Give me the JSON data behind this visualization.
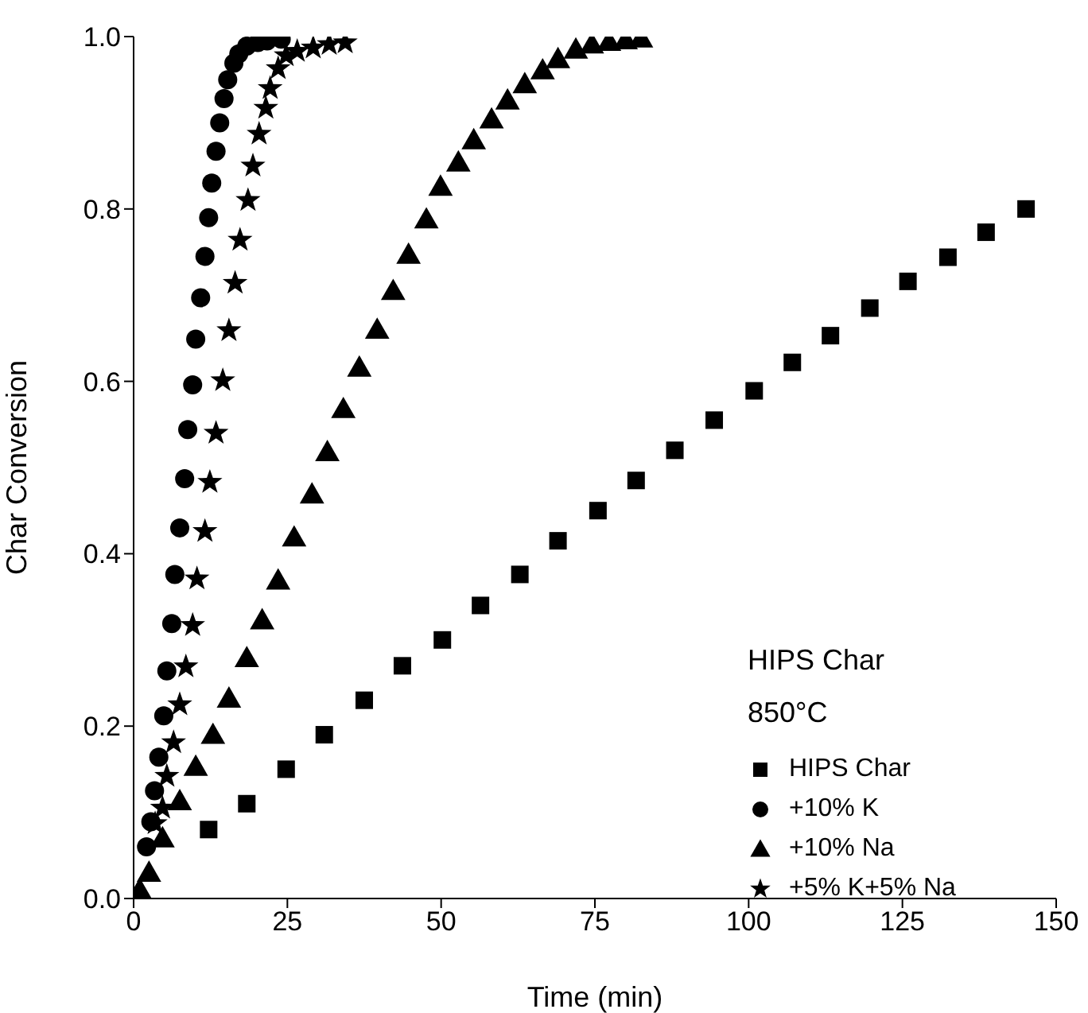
{
  "chart_data": {
    "type": "scatter",
    "xlabel": "Time (min)",
    "ylabel": "Char Conversion",
    "xlim": [
      0,
      150
    ],
    "xticks": [
      0,
      25,
      50,
      75,
      100,
      125,
      150
    ],
    "ylim": [
      0,
      1
    ],
    "yticks": [
      {
        "value": 0,
        "label": "0.0"
      },
      0.2,
      0.4,
      0.6,
      0.8,
      {
        "value": 1,
        "label": "1.0"
      }
    ],
    "legend": "bottom right",
    "annotations": [
      "HIPS Char",
      "850°C"
    ],
    "series": [
      {
        "name": "HIPS Char",
        "color": "#000000",
        "marker": "square",
        "x": [
          12.2,
          18.4,
          24.8,
          31.0,
          37.5,
          43.7,
          50.2,
          56.4,
          62.8,
          69.0,
          75.5,
          81.7,
          88.0,
          94.4,
          100.9,
          107.1,
          113.3,
          119.7,
          125.9,
          132.4,
          138.6,
          145.1
        ],
        "values": [
          0.08,
          0.11,
          0.15,
          0.19,
          0.23,
          0.27,
          0.3,
          0.34,
          0.376,
          0.415,
          0.45,
          0.485,
          0.52,
          0.555,
          0.589,
          0.622,
          0.653,
          0.685,
          0.716,
          0.744,
          0.773,
          0.8
        ]
      },
      {
        "name": "+10% K",
        "color": "#000000",
        "marker": "circle",
        "x": [
          2.1,
          2.8,
          3.4,
          4.1,
          4.9,
          5.4,
          6.2,
          6.7,
          7.5,
          8.3,
          8.8,
          9.6,
          10.1,
          10.9,
          11.6,
          12.2,
          12.7,
          13.4,
          14.0,
          14.7,
          15.3,
          16.3,
          17.1,
          18.4,
          20.2,
          21.7,
          24.0
        ],
        "values": [
          0.06,
          0.089,
          0.125,
          0.164,
          0.212,
          0.264,
          0.319,
          0.376,
          0.43,
          0.487,
          0.544,
          0.596,
          0.649,
          0.697,
          0.745,
          0.79,
          0.83,
          0.867,
          0.9,
          0.928,
          0.95,
          0.969,
          0.98,
          0.989,
          0.993,
          0.995,
          0.997
        ]
      },
      {
        "name": "+10% Na",
        "color": "#000000",
        "marker": "triangle",
        "x": [
          1.0,
          2.5,
          4.7,
          7.5,
          10.1,
          12.9,
          15.5,
          18.4,
          20.9,
          23.5,
          26.1,
          29.0,
          31.5,
          34.1,
          36.7,
          39.6,
          42.2,
          44.7,
          47.6,
          49.9,
          52.8,
          55.3,
          58.2,
          60.8,
          63.6,
          66.5,
          69.0,
          71.9,
          74.5,
          77.3,
          80.0,
          82.5
        ],
        "values": [
          0.01,
          0.03,
          0.07,
          0.113,
          0.153,
          0.19,
          0.232,
          0.279,
          0.323,
          0.369,
          0.419,
          0.469,
          0.518,
          0.568,
          0.616,
          0.66,
          0.705,
          0.747,
          0.788,
          0.826,
          0.854,
          0.88,
          0.904,
          0.926,
          0.945,
          0.961,
          0.974,
          0.985,
          0.991,
          0.994,
          0.996,
          0.998
        ]
      },
      {
        "name": "+5% K+5% Na",
        "color": "#000000",
        "marker": "star",
        "x": [
          3.5,
          4.7,
          5.4,
          6.5,
          7.5,
          8.5,
          9.6,
          10.3,
          11.6,
          12.4,
          13.4,
          14.5,
          15.5,
          16.5,
          17.3,
          18.6,
          19.4,
          20.4,
          21.5,
          22.2,
          23.5,
          24.8,
          26.6,
          29.2,
          31.8,
          34.4
        ],
        "values": [
          0.087,
          0.105,
          0.142,
          0.181,
          0.225,
          0.269,
          0.317,
          0.371,
          0.426,
          0.483,
          0.54,
          0.601,
          0.659,
          0.714,
          0.764,
          0.81,
          0.85,
          0.887,
          0.917,
          0.94,
          0.963,
          0.978,
          0.983,
          0.987,
          0.991,
          0.993
        ]
      }
    ]
  }
}
